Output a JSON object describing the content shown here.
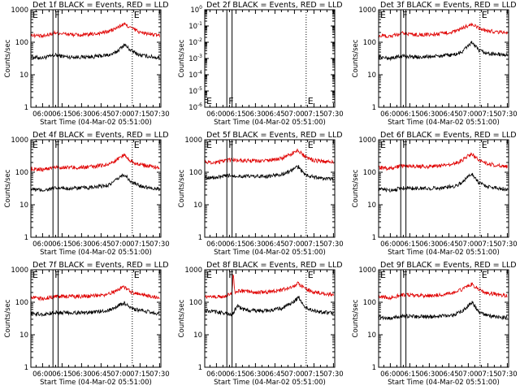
{
  "figure": {
    "colors": {
      "events": "#000000",
      "lld": "#e00000",
      "axes": "#000000",
      "background": "#ffffff"
    }
  },
  "chart_data": [
    {
      "type": "line",
      "title": "Det 1f BLACK = Events, RED = LLD",
      "xlabel": "Start Time (04-Mar-02 05:51:00)",
      "ylabel": "Counts/sec",
      "x_unit": "UT (HH:MM)",
      "xlim": [
        "05:51",
        "07:31"
      ],
      "x_ticks": [
        "06:00",
        "06:15",
        "06:30",
        "06:45",
        "07:00",
        "07:15",
        "07:30"
      ],
      "y_scale": "log",
      "ylim": [
        1,
        1000
      ],
      "y_ticks": [
        "1",
        "10",
        "100",
        "1000"
      ],
      "markers": [
        {
          "label": "E",
          "time": "05:51",
          "style": "solid"
        },
        {
          "label": "F",
          "time": "06:08",
          "style": "solid"
        },
        {
          "time": "06:12",
          "style": "solid"
        },
        {
          "label": "E",
          "time": "07:09",
          "style": "dotted"
        }
      ],
      "series": [
        {
          "color": "#000000",
          "x": [
            "05:51",
            "06:00",
            "06:10",
            "06:20",
            "06:30",
            "06:40",
            "06:50",
            "06:55",
            "07:00",
            "07:03",
            "07:08",
            "07:15",
            "07:30"
          ],
          "y": [
            35,
            33,
            40,
            35,
            35,
            36,
            40,
            45,
            65,
            85,
            55,
            40,
            33
          ]
        },
        {
          "color": "#e00000",
          "x": [
            "05:51",
            "06:00",
            "06:10",
            "06:20",
            "06:30",
            "06:40",
            "06:50",
            "06:55",
            "07:00",
            "07:03",
            "07:08",
            "07:15",
            "07:30"
          ],
          "y": [
            170,
            150,
            200,
            175,
            165,
            180,
            210,
            250,
            320,
            360,
            280,
            200,
            160
          ]
        }
      ]
    },
    {
      "type": "line",
      "title": "Det 2f BLACK = Events, RED = LLD",
      "xlabel": "Start Time (04-Mar-02 05:51:00)",
      "ylabel": "Counts/sec",
      "x_unit": "UT (HH:MM)",
      "xlim": [
        "05:51",
        "07:31"
      ],
      "x_ticks": [
        "06:00",
        "06:15",
        "06:30",
        "06:45",
        "07:00",
        "07:15",
        "07:30"
      ],
      "y_scale": "log",
      "ylim": [
        1e-06,
        1
      ],
      "y_ticks": [
        "10^0",
        "10^-1",
        "10^-2",
        "10^-3",
        "10^-4",
        "10^-5",
        "10^-6"
      ],
      "markers": [
        {
          "label": "E",
          "time": "05:51",
          "style": "solid"
        },
        {
          "label": "F",
          "time": "06:08",
          "style": "solid"
        },
        {
          "time": "06:12",
          "style": "solid"
        },
        {
          "label": "E",
          "time": "07:09",
          "style": "dotted"
        }
      ],
      "series": []
    },
    {
      "type": "line",
      "title": "Det 3f BLACK = Events, RED = LLD",
      "xlabel": "Start Time (04-Mar-02 05:51:00)",
      "ylabel": "Counts/sec",
      "x_unit": "UT (HH:MM)",
      "xlim": [
        "05:51",
        "07:31"
      ],
      "x_ticks": [
        "06:00",
        "06:15",
        "06:30",
        "06:45",
        "07:00",
        "07:15",
        "07:30"
      ],
      "y_scale": "log",
      "ylim": [
        1,
        1000
      ],
      "y_ticks": [
        "1",
        "10",
        "100",
        "1000"
      ],
      "markers": [
        {
          "label": "E",
          "time": "05:51",
          "style": "solid"
        },
        {
          "label": "F",
          "time": "06:08",
          "style": "solid"
        },
        {
          "time": "06:12",
          "style": "solid"
        },
        {
          "label": "E",
          "time": "07:09",
          "style": "dotted"
        }
      ],
      "series": [
        {
          "color": "#000000",
          "x": [
            "05:51",
            "06:00",
            "06:10",
            "06:20",
            "06:30",
            "06:40",
            "06:50",
            "06:55",
            "07:00",
            "07:03",
            "07:08",
            "07:15",
            "07:30"
          ],
          "y": [
            35,
            32,
            38,
            35,
            36,
            38,
            42,
            50,
            80,
            100,
            55,
            45,
            40
          ]
        },
        {
          "color": "#e00000",
          "x": [
            "05:51",
            "06:00",
            "06:10",
            "06:20",
            "06:30",
            "06:40",
            "06:50",
            "06:55",
            "07:00",
            "07:03",
            "07:08",
            "07:15",
            "07:30"
          ],
          "y": [
            160,
            150,
            190,
            170,
            170,
            185,
            215,
            260,
            330,
            350,
            270,
            220,
            200
          ]
        }
      ]
    },
    {
      "type": "line",
      "title": "Det 4f BLACK = Events, RED = LLD",
      "xlabel": "Start Time (04-Mar-02 05:51:00)",
      "ylabel": "Counts/sec",
      "x_unit": "UT (HH:MM)",
      "xlim": [
        "05:51",
        "07:31"
      ],
      "x_ticks": [
        "06:00",
        "06:15",
        "06:30",
        "06:45",
        "07:00",
        "07:15",
        "07:30"
      ],
      "y_scale": "log",
      "ylim": [
        1,
        1000
      ],
      "y_ticks": [
        "1",
        "10",
        "100",
        "1000"
      ],
      "markers": [
        {
          "label": "E",
          "time": "05:51",
          "style": "solid"
        },
        {
          "label": "F",
          "time": "06:08",
          "style": "solid"
        },
        {
          "time": "06:12",
          "style": "solid"
        },
        {
          "label": "E",
          "time": "07:09",
          "style": "dotted"
        }
      ],
      "series": [
        {
          "color": "#000000",
          "x": [
            "05:51",
            "06:00",
            "06:10",
            "06:20",
            "06:30",
            "06:40",
            "06:50",
            "06:55",
            "07:00",
            "07:03",
            "07:08",
            "07:15",
            "07:30"
          ],
          "y": [
            30,
            28,
            32,
            32,
            33,
            34,
            40,
            50,
            75,
            85,
            50,
            38,
            30
          ]
        },
        {
          "color": "#e00000",
          "x": [
            "05:51",
            "06:00",
            "06:10",
            "06:20",
            "06:30",
            "06:40",
            "06:50",
            "06:55",
            "07:00",
            "07:03",
            "07:08",
            "07:15",
            "07:30"
          ],
          "y": [
            130,
            120,
            145,
            140,
            140,
            150,
            175,
            210,
            300,
            340,
            220,
            170,
            140
          ]
        }
      ]
    },
    {
      "type": "line",
      "title": "Det 5f BLACK = Events, RED = LLD",
      "xlabel": "Start Time (04-Mar-02 05:51:00)",
      "ylabel": "Counts/sec",
      "x_unit": "UT (HH:MM)",
      "xlim": [
        "05:51",
        "07:31"
      ],
      "x_ticks": [
        "06:00",
        "06:15",
        "06:30",
        "06:45",
        "07:00",
        "07:15",
        "07:30"
      ],
      "y_scale": "log",
      "ylim": [
        1,
        1000
      ],
      "y_ticks": [
        "1",
        "10",
        "100",
        "1000"
      ],
      "markers": [
        {
          "label": "E",
          "time": "05:51",
          "style": "solid"
        },
        {
          "label": "F",
          "time": "06:08",
          "style": "solid"
        },
        {
          "time": "06:12",
          "style": "solid"
        },
        {
          "label": "E",
          "time": "07:09",
          "style": "dotted"
        }
      ],
      "series": [
        {
          "color": "#000000",
          "x": [
            "05:51",
            "06:00",
            "06:10",
            "06:20",
            "06:30",
            "06:40",
            "06:50",
            "06:55",
            "07:00",
            "07:03",
            "07:08",
            "07:15",
            "07:30"
          ],
          "y": [
            70,
            68,
            80,
            75,
            75,
            75,
            85,
            100,
            130,
            150,
            85,
            70,
            60
          ]
        },
        {
          "color": "#e00000",
          "x": [
            "05:51",
            "06:00",
            "06:10",
            "06:20",
            "06:30",
            "06:40",
            "06:50",
            "06:55",
            "07:00",
            "07:03",
            "07:08",
            "07:15",
            "07:30"
          ],
          "y": [
            210,
            200,
            240,
            230,
            220,
            230,
            265,
            320,
            420,
            480,
            300,
            230,
            200
          ]
        }
      ]
    },
    {
      "type": "line",
      "title": "Det 6f BLACK = Events, RED = LLD",
      "xlabel": "Start Time (04-Mar-02 05:51:00)",
      "ylabel": "Counts/sec",
      "x_unit": "UT (HH:MM)",
      "xlim": [
        "05:51",
        "07:31"
      ],
      "x_ticks": [
        "06:00",
        "06:15",
        "06:30",
        "06:45",
        "07:00",
        "07:15",
        "07:30"
      ],
      "y_scale": "log",
      "ylim": [
        1,
        1000
      ],
      "y_ticks": [
        "1",
        "10",
        "100",
        "1000"
      ],
      "markers": [
        {
          "label": "E",
          "time": "05:51",
          "style": "solid"
        },
        {
          "label": "F",
          "time": "06:08",
          "style": "solid"
        },
        {
          "time": "06:12",
          "style": "solid"
        },
        {
          "label": "E",
          "time": "07:09",
          "style": "dotted"
        }
      ],
      "series": [
        {
          "color": "#000000",
          "x": [
            "05:51",
            "06:00",
            "06:10",
            "06:20",
            "06:30",
            "06:40",
            "06:50",
            "06:55",
            "07:00",
            "07:03",
            "07:08",
            "07:15",
            "07:30"
          ],
          "y": [
            30,
            28,
            33,
            32,
            32,
            33,
            38,
            48,
            75,
            90,
            48,
            36,
            30
          ]
        },
        {
          "color": "#e00000",
          "x": [
            "05:51",
            "06:00",
            "06:10",
            "06:20",
            "06:30",
            "06:40",
            "06:50",
            "06:55",
            "07:00",
            "07:03",
            "07:08",
            "07:15",
            "07:30"
          ],
          "y": [
            140,
            130,
            160,
            150,
            150,
            160,
            190,
            230,
            320,
            360,
            230,
            180,
            150
          ]
        }
      ]
    },
    {
      "type": "line",
      "title": "Det 7f BLACK = Events, RED = LLD",
      "xlabel": "Start Time (04-Mar-02 05:51:00)",
      "ylabel": "Counts/sec",
      "x_unit": "UT (HH:MM)",
      "xlim": [
        "05:51",
        "07:31"
      ],
      "x_ticks": [
        "06:00",
        "06:15",
        "06:30",
        "06:45",
        "07:00",
        "07:15",
        "07:30"
      ],
      "y_scale": "log",
      "ylim": [
        1,
        1000
      ],
      "y_ticks": [
        "1",
        "10",
        "100",
        "1000"
      ],
      "markers": [
        {
          "label": "E",
          "time": "05:51",
          "style": "solid"
        },
        {
          "label": "F",
          "time": "06:08",
          "style": "solid"
        },
        {
          "time": "06:12",
          "style": "solid"
        },
        {
          "label": "E",
          "time": "07:09",
          "style": "dotted"
        }
      ],
      "series": [
        {
          "color": "#000000",
          "x": [
            "05:51",
            "06:00",
            "06:10",
            "06:20",
            "06:30",
            "06:40",
            "06:50",
            "06:55",
            "07:00",
            "07:03",
            "07:08",
            "07:15",
            "07:30"
          ],
          "y": [
            45,
            42,
            48,
            48,
            48,
            50,
            55,
            65,
            85,
            95,
            65,
            55,
            45
          ]
        },
        {
          "color": "#e00000",
          "x": [
            "05:51",
            "06:00",
            "06:10",
            "06:20",
            "06:30",
            "06:40",
            "06:50",
            "06:55",
            "07:00",
            "07:03",
            "07:08",
            "07:15",
            "07:30"
          ],
          "y": [
            140,
            130,
            150,
            150,
            150,
            155,
            175,
            210,
            270,
            290,
            210,
            170,
            140
          ]
        }
      ]
    },
    {
      "type": "line",
      "title": "Det 8f BLACK = Events, RED = LLD",
      "xlabel": "Start Time (04-Mar-02 05:51:00)",
      "ylabel": "Counts/sec",
      "x_unit": "UT (HH:MM)",
      "xlim": [
        "05:51",
        "07:31"
      ],
      "x_ticks": [
        "06:00",
        "06:15",
        "06:30",
        "06:45",
        "07:00",
        "07:15",
        "07:30"
      ],
      "y_scale": "log",
      "ylim": [
        1,
        1000
      ],
      "y_ticks": [
        "1",
        "10",
        "100",
        "1000"
      ],
      "markers": [
        {
          "label": "E",
          "time": "05:51",
          "style": "solid"
        },
        {
          "label": "F",
          "time": "06:08",
          "style": "solid"
        },
        {
          "time": "06:12",
          "style": "solid"
        },
        {
          "label": "E",
          "time": "07:09",
          "style": "dotted"
        }
      ],
      "series": [
        {
          "color": "#000000",
          "x": [
            "05:51",
            "06:00",
            "06:05",
            "06:12",
            "06:16",
            "06:20",
            "06:30",
            "06:40",
            "06:50",
            "06:55",
            "07:00",
            "07:03",
            "07:08",
            "07:15",
            "07:30"
          ],
          "y": [
            55,
            50,
            48,
            40,
            80,
            60,
            55,
            55,
            65,
            80,
            110,
            140,
            70,
            55,
            45
          ]
        },
        {
          "color": "#e00000",
          "x": [
            "05:51",
            "06:00",
            "06:05",
            "06:08",
            "06:12",
            "06:13",
            "06:14",
            "06:16",
            "06:20",
            "06:30",
            "06:40",
            "06:50",
            "06:55",
            "07:00",
            "07:03",
            "07:08",
            "07:15",
            "07:30"
          ],
          "y": [
            140,
            150,
            145,
            160,
            200,
            900,
            200,
            230,
            220,
            200,
            210,
            240,
            280,
            330,
            380,
            260,
            200,
            170
          ]
        }
      ]
    },
    {
      "type": "line",
      "title": "Det 9f BLACK = Events, RED = LLD",
      "xlabel": "Start Time (04-Mar-02 05:51:00)",
      "ylabel": "Counts/sec",
      "x_unit": "UT (HH:MM)",
      "xlim": [
        "05:51",
        "07:31"
      ],
      "x_ticks": [
        "06:00",
        "06:15",
        "06:30",
        "06:45",
        "07:00",
        "07:15",
        "07:30"
      ],
      "y_scale": "log",
      "ylim": [
        1,
        1000
      ],
      "y_ticks": [
        "1",
        "10",
        "100",
        "1000"
      ],
      "markers": [
        {
          "label": "E",
          "time": "05:51",
          "style": "solid"
        },
        {
          "label": "F",
          "time": "06:08",
          "style": "solid"
        },
        {
          "time": "06:12",
          "style": "solid"
        },
        {
          "label": "E",
          "time": "07:09",
          "style": "dotted"
        }
      ],
      "series": [
        {
          "color": "#000000",
          "x": [
            "05:51",
            "06:00",
            "06:10",
            "06:20",
            "06:30",
            "06:40",
            "06:50",
            "06:55",
            "07:00",
            "07:03",
            "07:08",
            "07:15",
            "07:30"
          ],
          "y": [
            35,
            32,
            38,
            36,
            36,
            38,
            42,
            52,
            80,
            100,
            50,
            38,
            33
          ]
        },
        {
          "color": "#e00000",
          "x": [
            "05:51",
            "06:00",
            "06:10",
            "06:20",
            "06:30",
            "06:40",
            "06:50",
            "06:55",
            "07:00",
            "07:03",
            "07:08",
            "07:15",
            "07:30"
          ],
          "y": [
            150,
            140,
            170,
            160,
            160,
            170,
            200,
            245,
            330,
            360,
            240,
            190,
            160
          ]
        }
      ]
    }
  ]
}
